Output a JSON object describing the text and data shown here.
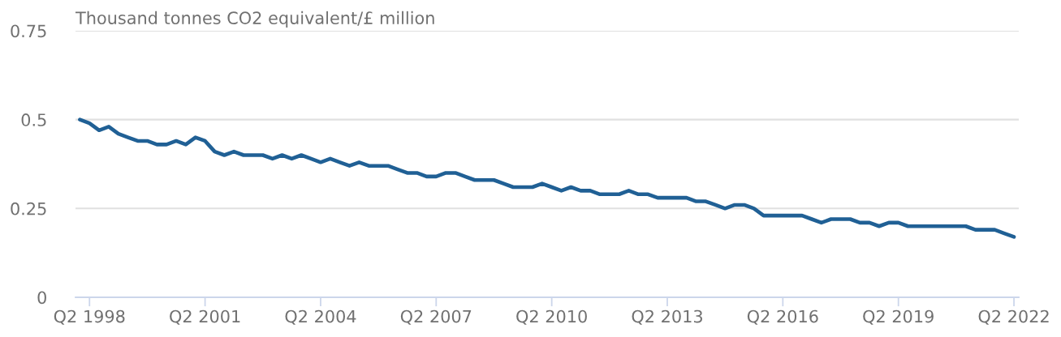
{
  "chart_data": {
    "type": "line",
    "ylabel": "Thousand tonnes CO2 equivalent/£ million",
    "categories": [
      null,
      "Q2 1998",
      null,
      null,
      null,
      null,
      null,
      null,
      null,
      null,
      null,
      null,
      null,
      "Q2 2001",
      null,
      null,
      null,
      null,
      null,
      null,
      null,
      null,
      null,
      null,
      null,
      "Q2 2004",
      null,
      null,
      null,
      null,
      null,
      null,
      null,
      null,
      null,
      null,
      null,
      "Q2 2007",
      null,
      null,
      null,
      null,
      null,
      null,
      null,
      null,
      null,
      null,
      null,
      "Q2 2010",
      null,
      null,
      null,
      null,
      null,
      null,
      null,
      null,
      null,
      null,
      null,
      "Q2 2013",
      null,
      null,
      null,
      null,
      null,
      null,
      null,
      null,
      null,
      null,
      null,
      "Q2 2016",
      null,
      null,
      null,
      null,
      null,
      null,
      null,
      null,
      null,
      null,
      null,
      "Q2 2019",
      null,
      null,
      null,
      null,
      null,
      null,
      null,
      null,
      null,
      null,
      null,
      "Q2 2022"
    ],
    "series": [
      {
        "color": "#206095",
        "values": [
          0.5,
          0.49,
          0.47,
          0.48,
          0.46,
          0.45,
          0.44,
          0.44,
          0.43,
          0.43,
          0.44,
          0.43,
          0.45,
          0.44,
          0.41,
          0.4,
          0.41,
          0.4,
          0.4,
          0.4,
          0.39,
          0.4,
          0.39,
          0.4,
          0.39,
          0.38,
          0.39,
          0.38,
          0.37,
          0.38,
          0.37,
          0.37,
          0.37,
          0.36,
          0.35,
          0.35,
          0.34,
          0.34,
          0.35,
          0.35,
          0.34,
          0.33,
          0.33,
          0.33,
          0.32,
          0.31,
          0.31,
          0.31,
          0.32,
          0.31,
          0.3,
          0.31,
          0.3,
          0.3,
          0.29,
          0.29,
          0.29,
          0.3,
          0.29,
          0.29,
          0.28,
          0.28,
          0.28,
          0.28,
          0.27,
          0.27,
          0.26,
          0.25,
          0.26,
          0.26,
          0.25,
          0.23,
          0.23,
          0.23,
          0.23,
          0.23,
          0.22,
          0.21,
          0.22,
          0.22,
          0.22,
          0.21,
          0.21,
          0.2,
          0.21,
          0.21,
          0.2,
          0.2,
          0.2,
          0.2,
          0.2,
          0.2,
          0.2,
          0.19,
          0.19,
          0.19,
          0.18,
          0.17
        ]
      }
    ],
    "ylim": [
      0,
      0.75
    ],
    "yticks": [
      0,
      0.25,
      0.5,
      0.75
    ],
    "grid": "y"
  }
}
